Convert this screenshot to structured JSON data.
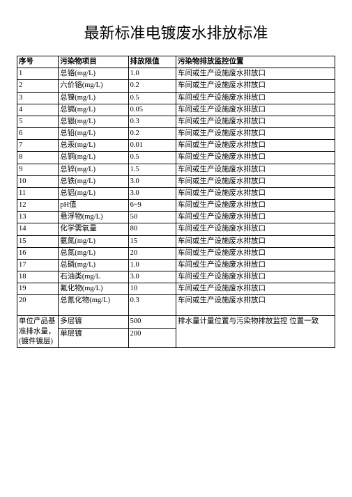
{
  "title": "最新标准电镀废水排放标准",
  "headers": {
    "c1": "序号",
    "c2": "污染物项目",
    "c3": "排放限值",
    "c4": "污染物排放监控位置"
  },
  "rows": [
    {
      "n": "1",
      "item": "总铬(mg/L)",
      "limit": "1.0",
      "loc": "车间或生产设施废水排放口"
    },
    {
      "n": "2",
      "item": "六价铬(mg/L)",
      "limit": "0.2",
      "loc": "车间或生产设施废水排放口"
    },
    {
      "n": "3",
      "item": "总镍(mg/L)",
      "limit": "0.5",
      "loc": "车间或生产设施废水排放口"
    },
    {
      "n": "4",
      "item": "总镉(mg/L)",
      "limit": "0.05",
      "loc": "车间或生产设施废水排放口"
    },
    {
      "n": "5",
      "item": "总银(mg/L)",
      "limit": "0.3",
      "loc": "车间或生产设施废水排放口"
    },
    {
      "n": "6",
      "item": "总铅(mg/L)",
      "limit": "0.2",
      "loc": "车间或生产设施废水排放口"
    },
    {
      "n": "7",
      "item": "总汞(mg/L)",
      "limit": "0.01",
      "loc": "车间或生产设施废水排放口"
    },
    {
      "n": "8",
      "item": "总铜(mg/L)",
      "limit": "0.5",
      "loc": "车间或生产设施废水排放口"
    },
    {
      "n": "9",
      "item": "总锌(mg/L)",
      "limit": "1.5",
      "loc": "车间或生产设施废水排放口"
    },
    {
      "n": "10",
      "item": "总铁(mg/L)",
      "limit": "3.0",
      "loc": "车间或生产设施废水排放口"
    },
    {
      "n": "11",
      "item": "总铝(mg/L)",
      "limit": "3.0",
      "loc": "车间或生产设施废水排放口"
    },
    {
      "n": "12",
      "item": "pH值",
      "limit": "6~9",
      "loc": "车间或生产设施废水排放口"
    },
    {
      "n": "13",
      "item": "悬浮物(mg/L)",
      "limit": "50",
      "loc": "车间或生产设施废水排放口"
    },
    {
      "n": "14",
      "item": "化学需氧量",
      "limit": "80",
      "loc": "车间或生产设施废水排放口"
    },
    {
      "n": "15",
      "item": "氨氮(mg/L)",
      "limit": "15",
      "loc": "车间或生产设施废水排放口"
    },
    {
      "n": "16",
      "item": "总氮(mg/L)",
      "limit": "20",
      "loc": "车间或生产设施废水排放口"
    },
    {
      "n": "17",
      "item": "总磷(mg/L)",
      "limit": "1.0",
      "loc": "车间或生产设施废水排放口"
    },
    {
      "n": "18",
      "item": "石油类(mg/L",
      "limit": "3.0",
      "loc": "车间或生产设施废水排放口"
    },
    {
      "n": "19",
      "item": "氟化物(mg/L)",
      "limit": "10",
      "loc": "车间或生产设施废水排放口"
    }
  ],
  "row20": {
    "n": "20",
    "item": "总氰化物(mg/L)",
    "limit": "0.3",
    "loc": "车间或生产设施废水排放口"
  },
  "footer": {
    "label": "单位产品基 准排水量，(镀件镀层)",
    "k1": "多层镀",
    "v1": "500",
    "k2": "单层镀",
    "v2": "200",
    "loc": "排水量计量位置与污染物排放监控 位置一致"
  }
}
